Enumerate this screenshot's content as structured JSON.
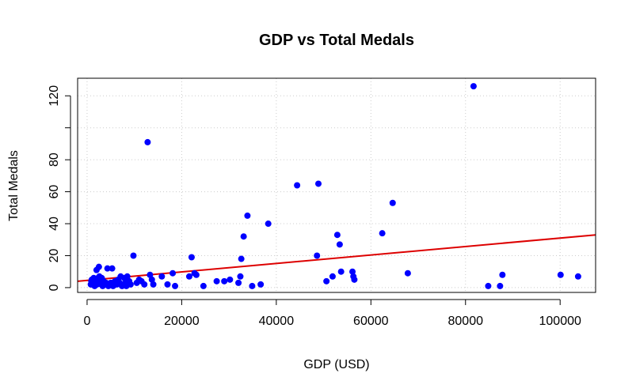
{
  "chart_data": {
    "type": "scatter",
    "title": "GDP vs Total Medals",
    "xlabel": "GDP (USD)",
    "ylabel": "Total Medals",
    "xlim": [
      -2000,
      107500
    ],
    "ylim": [
      -3,
      131
    ],
    "x_ticks": [
      0,
      20000,
      40000,
      60000,
      80000,
      100000
    ],
    "x_tick_labels": [
      "0",
      "20000",
      "40000",
      "60000",
      "80000",
      "100000"
    ],
    "y_ticks": [
      0,
      20,
      40,
      60,
      80,
      100,
      120
    ],
    "y_tick_labels": [
      "0",
      "20",
      "40",
      "60",
      "80",
      "",
      "120"
    ],
    "grid": true,
    "point_color": "#0000ff",
    "line_color": "#dd0000",
    "grid_color": "#cccccc",
    "series": [
      {
        "type": "scatter",
        "points": [
          [
            800,
            2
          ],
          [
            900,
            4
          ],
          [
            1000,
            5
          ],
          [
            1100,
            2
          ],
          [
            1200,
            3
          ],
          [
            1400,
            6
          ],
          [
            1600,
            1
          ],
          [
            1700,
            4
          ],
          [
            1900,
            5
          ],
          [
            2000,
            11
          ],
          [
            2100,
            2
          ],
          [
            2200,
            3
          ],
          [
            2300,
            6
          ],
          [
            2400,
            4
          ],
          [
            2500,
            13
          ],
          [
            2600,
            7
          ],
          [
            2800,
            3
          ],
          [
            3000,
            2
          ],
          [
            3100,
            6
          ],
          [
            3300,
            1
          ],
          [
            3500,
            4
          ],
          [
            3800,
            2
          ],
          [
            4000,
            3
          ],
          [
            4300,
            12
          ],
          [
            4500,
            1
          ],
          [
            4800,
            2
          ],
          [
            5000,
            3
          ],
          [
            5300,
            12
          ],
          [
            5500,
            1
          ],
          [
            5900,
            4
          ],
          [
            6300,
            2
          ],
          [
            6600,
            5
          ],
          [
            6900,
            3
          ],
          [
            7100,
            7
          ],
          [
            7400,
            1
          ],
          [
            7700,
            2
          ],
          [
            7900,
            6
          ],
          [
            8100,
            3
          ],
          [
            8300,
            1
          ],
          [
            8500,
            7
          ],
          [
            8900,
            4
          ],
          [
            9200,
            2
          ],
          [
            9800,
            20
          ],
          [
            10500,
            3
          ],
          [
            11000,
            5
          ],
          [
            11500,
            4
          ],
          [
            12100,
            2
          ],
          [
            12800,
            91
          ],
          [
            13300,
            8
          ],
          [
            13700,
            5
          ],
          [
            14000,
            2
          ],
          [
            15800,
            7
          ],
          [
            17000,
            2
          ],
          [
            18100,
            9
          ],
          [
            18600,
            1
          ],
          [
            21600,
            7
          ],
          [
            22100,
            19
          ],
          [
            22700,
            9
          ],
          [
            23100,
            8
          ],
          [
            24600,
            1
          ],
          [
            27400,
            4
          ],
          [
            29000,
            4
          ],
          [
            30200,
            5
          ],
          [
            32000,
            3
          ],
          [
            32400,
            7
          ],
          [
            32600,
            18
          ],
          [
            33100,
            32
          ],
          [
            33900,
            45
          ],
          [
            34900,
            1
          ],
          [
            36700,
            2
          ],
          [
            38300,
            40
          ],
          [
            44400,
            64
          ],
          [
            48600,
            20
          ],
          [
            48900,
            65
          ],
          [
            50600,
            4
          ],
          [
            51900,
            7
          ],
          [
            52900,
            33
          ],
          [
            53400,
            27
          ],
          [
            53700,
            10
          ],
          [
            56100,
            10
          ],
          [
            56300,
            7
          ],
          [
            56500,
            5
          ],
          [
            62400,
            34
          ],
          [
            64600,
            53
          ],
          [
            67800,
            9
          ],
          [
            81700,
            126
          ],
          [
            84800,
            1
          ],
          [
            87300,
            1
          ],
          [
            87800,
            8
          ],
          [
            100100,
            8
          ],
          [
            103800,
            7
          ]
        ]
      },
      {
        "type": "line",
        "name": "",
        "x": [
          -2000,
          107500
        ],
        "y": [
          4,
          33
        ]
      }
    ]
  }
}
